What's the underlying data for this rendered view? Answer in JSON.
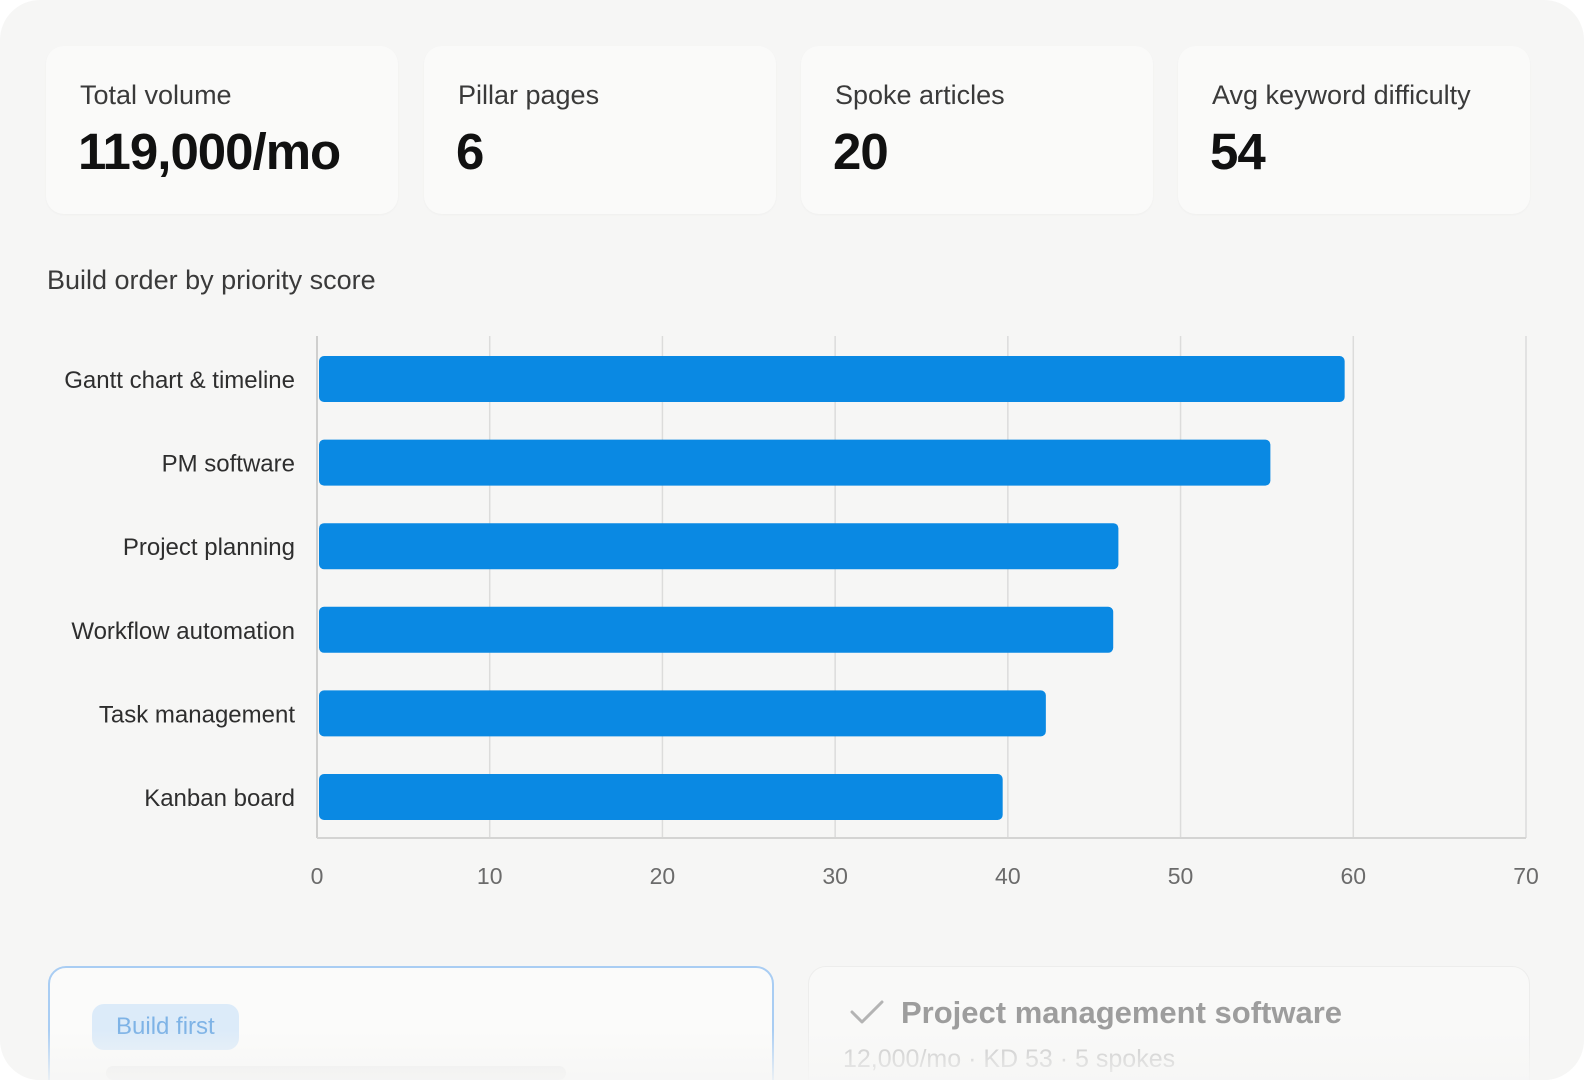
{
  "stats": [
    {
      "label": "Total volume",
      "value": "119,000/mo"
    },
    {
      "label": "Pillar pages",
      "value": "6"
    },
    {
      "label": "Spoke articles",
      "value": "20"
    },
    {
      "label": "Avg keyword difficulty",
      "value": "54"
    }
  ],
  "section_title": "Build order by priority score",
  "chart_data": {
    "type": "bar",
    "orientation": "horizontal",
    "categories": [
      "Gantt chart & timeline",
      "PM software",
      "Project planning",
      "Workflow automation",
      "Task management",
      "Kanban board"
    ],
    "values": [
      59.5,
      55.2,
      46.4,
      46.1,
      42.2,
      39.7
    ],
    "xlim": [
      0,
      70
    ],
    "x_ticks": [
      "0",
      "10",
      "20",
      "30",
      "40",
      "50",
      "60",
      "70"
    ],
    "grid": true,
    "bar_color": "#0a89e3"
  },
  "cards": {
    "left": {
      "badge": "Build first"
    },
    "right": {
      "title": "Project management software",
      "meta": "12,000/mo · KD 53 · 5 spokes"
    }
  }
}
